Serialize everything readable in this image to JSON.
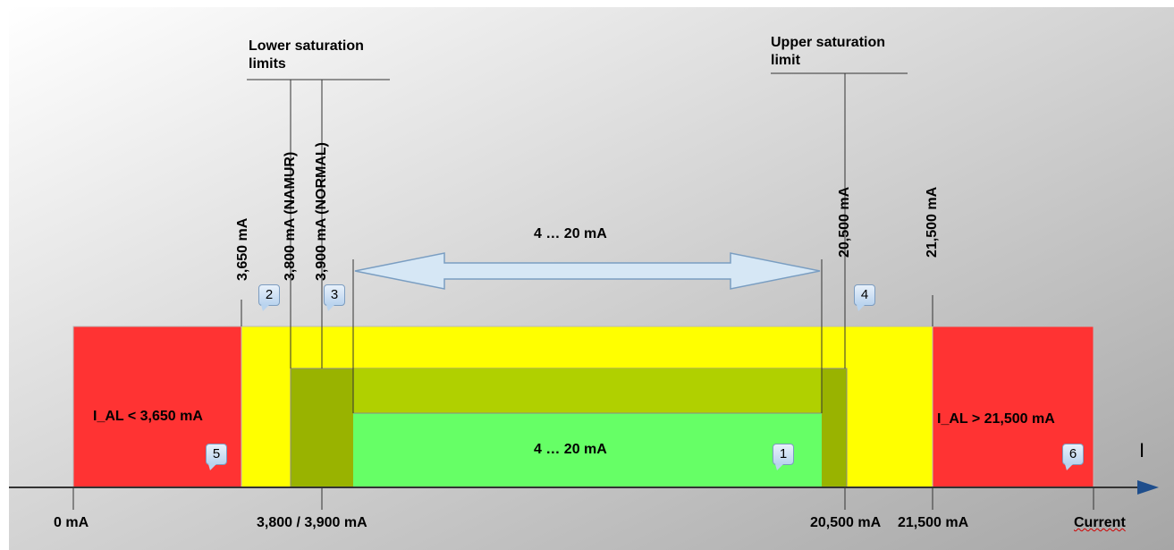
{
  "bands": {
    "alarm_low_label": "I_AL < 3,650 mA",
    "alarm_high_label": "I_AL > 21,500 mA",
    "normal_label": "4 … 20 mA",
    "range_arrow_label": "4 … 20 mA"
  },
  "headers": {
    "lower_saturation": [
      "Lower saturation",
      "limits"
    ],
    "upper_saturation": [
      "Upper saturation",
      "limit"
    ]
  },
  "vertical_labels": {
    "v3650": "3,650 mA",
    "v3800": "3,800 mA (NAMUR)",
    "v3900": "3,900 mA (NORMAL)",
    "v20500": "20,500 mA",
    "v21500": "21,500 mA"
  },
  "axis": {
    "symbol": "I",
    "ticks": {
      "t0": "0 mA",
      "t3800": "3,800 / 3,900 mA",
      "t20500": "20,500 mA",
      "t21500": "21,500 mA",
      "current": "Current"
    }
  },
  "callouts": {
    "c1": "1",
    "c2": "2",
    "c3": "3",
    "c4": "4",
    "c5": "5",
    "c6": "6"
  },
  "colors": {
    "alarm_red": "#ff3333",
    "saturation_yellow": "#ffff00",
    "olive": "#99b300",
    "lime": "#b0d000",
    "normal_green": "#66ff66",
    "arrow_fill": "#d6e7f5",
    "arrow_stroke": "#7a9ec2"
  }
}
